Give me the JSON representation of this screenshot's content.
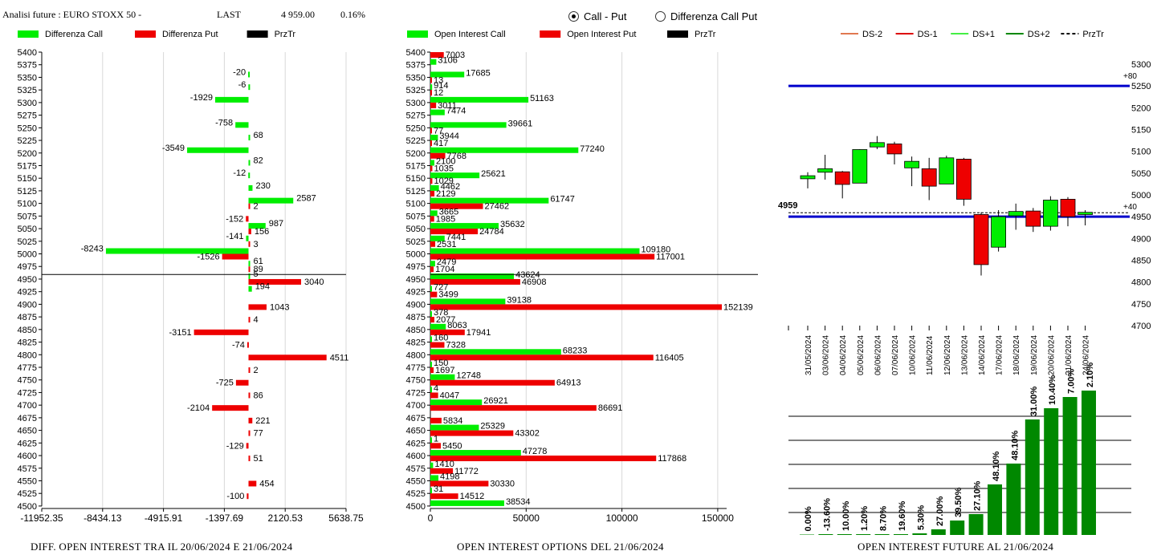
{
  "header": {
    "title": "Analisi future : EURO STOXX 50 -",
    "last_label": "LAST",
    "last_value": "4 959.00",
    "change": "0.16%"
  },
  "mode": {
    "options": [
      "Call - Put",
      "Differenza Call Put"
    ],
    "selected": "Call - Put"
  },
  "colors": {
    "call": "#00ee00",
    "put": "#ee0000",
    "prztr": "#000000",
    "band": "#0000cc",
    "bar_future": "#008800"
  },
  "price_levels": [
    5400,
    5375,
    5350,
    5325,
    5300,
    5275,
    5250,
    5225,
    5200,
    5175,
    5150,
    5125,
    5100,
    5075,
    5050,
    5025,
    5000,
    4975,
    4950,
    4925,
    4900,
    4875,
    4850,
    4825,
    4800,
    4775,
    4750,
    4725,
    4700,
    4675,
    4650,
    4625,
    4600,
    4575,
    4550,
    4525,
    4500
  ],
  "chart_data": [
    {
      "type": "bar",
      "orientation": "horizontal",
      "title": "DIFF. OPEN INTEREST TRA IL 20/06/2024 E 21/06/2024",
      "legend": [
        "Differenza Call",
        "Differenza Put",
        "PrzTr"
      ],
      "x_ticks": [
        "-11952.35",
        "-8434.13",
        "-4915.91",
        "-1397.69",
        "2120.53",
        "5638.75"
      ],
      "xlim": [
        -11952.35,
        5638.75
      ],
      "prztr": 4959,
      "categories": [
        5400,
        5375,
        5350,
        5325,
        5300,
        5275,
        5250,
        5225,
        5200,
        5175,
        5150,
        5125,
        5100,
        5075,
        5050,
        5025,
        5000,
        4975,
        4950,
        4925,
        4900,
        4875,
        4850,
        4825,
        4800,
        4775,
        4750,
        4725,
        4700,
        4675,
        4650,
        4625,
        4600,
        4575,
        4550,
        4525,
        4500
      ],
      "series": [
        {
          "name": "Differenza Call",
          "values": [
            null,
            null,
            -20,
            -6,
            -1929,
            null,
            -758,
            68,
            -3549,
            82,
            -12,
            230,
            2587,
            null,
            987,
            -141,
            -8243,
            61,
            5,
            194,
            null,
            null,
            null,
            null,
            null,
            null,
            null,
            null,
            null,
            null,
            null,
            null,
            null,
            null,
            null,
            null,
            null
          ]
        },
        {
          "name": "Differenza Put",
          "values": [
            null,
            null,
            null,
            null,
            null,
            null,
            null,
            null,
            null,
            null,
            null,
            null,
            2,
            -152,
            156,
            3,
            -1526,
            89,
            3040,
            null,
            1043,
            4,
            -3151,
            -74,
            4511,
            2,
            -725,
            86,
            -2104,
            221,
            77,
            -129,
            51,
            null,
            454,
            -100,
            null
          ]
        }
      ]
    },
    {
      "type": "bar",
      "orientation": "horizontal",
      "title": "OPEN INTEREST OPTIONS DEL 21/06/2024",
      "legend": [
        "Open Interest Call",
        "Open Interest Put",
        "PrzTr"
      ],
      "x_ticks": [
        "0",
        "50000",
        "100000",
        "150000"
      ],
      "xlim": [
        0,
        171000
      ],
      "prztr": 4959,
      "categories": [
        5400,
        5375,
        5350,
        5325,
        5300,
        5275,
        5250,
        5225,
        5200,
        5175,
        5150,
        5125,
        5100,
        5075,
        5050,
        5025,
        5000,
        4975,
        4950,
        4925,
        4900,
        4875,
        4850,
        4825,
        4800,
        4775,
        4750,
        4725,
        4700,
        4675,
        4650,
        4625,
        4600,
        4575,
        4550,
        4525,
        4500
      ],
      "series": [
        {
          "name": "Open Interest Call",
          "values": [
            null,
            3106,
            17685,
            914,
            51163,
            7474,
            39661,
            3944,
            77240,
            2100,
            25621,
            4462,
            61747,
            3665,
            35632,
            7441,
            109180,
            2479,
            43624,
            727,
            39138,
            378,
            8063,
            160,
            68233,
            150,
            12748,
            4,
            26921,
            null,
            25329,
            1,
            47278,
            1410,
            4198,
            31,
            38534
          ]
        },
        {
          "name": "Open Interest Put",
          "values": [
            7003,
            null,
            13,
            12,
            3011,
            null,
            77,
            417,
            7768,
            1035,
            1029,
            2129,
            27462,
            1985,
            24784,
            2531,
            117001,
            1704,
            46908,
            3499,
            152139,
            2077,
            17941,
            7328,
            116405,
            1697,
            64913,
            4047,
            86691,
            5834,
            43302,
            5450,
            117868,
            11772,
            30330,
            14512,
            null
          ]
        }
      ]
    },
    {
      "type": "candlestick",
      "legend": [
        "DS-2",
        "DS-1",
        "DS+1",
        "DS+2",
        "PrzTr"
      ],
      "legend_colors": [
        "#e07850",
        "#dd0000",
        "#44ee44",
        "#008800",
        "#000000"
      ],
      "y_ticks": [
        5300,
        5250,
        5200,
        5150,
        5100,
        5050,
        5000,
        4950,
        4900,
        4850,
        4800,
        4750,
        4700
      ],
      "ylim": [
        4700,
        5300
      ],
      "last": 4959,
      "last_label": "4959",
      "upper_band": 5250,
      "upper_band_label": "+80",
      "lower_band": 4950,
      "lower_band_label": "+40",
      "dates": [
        "31/05/2024",
        "03/06/2024",
        "04/06/2024",
        "05/06/2024",
        "06/06/2024",
        "07/06/2024",
        "10/06/2024",
        "11/06/2024",
        "12/06/2024",
        "13/06/2024",
        "14/06/2024",
        "17/06/2024",
        "18/06/2024",
        "19/06/2024",
        "20/06/2024",
        "21/06/2024",
        "24/06/2024"
      ],
      "candles": [
        {
          "o": 5037,
          "h": 5052,
          "l": 5015,
          "c": 5044
        },
        {
          "o": 5052,
          "h": 5092,
          "l": 5035,
          "c": 5060
        },
        {
          "o": 5053,
          "h": 5055,
          "l": 4992,
          "c": 5024
        },
        {
          "o": 5027,
          "h": 5105,
          "l": 5027,
          "c": 5104
        },
        {
          "o": 5110,
          "h": 5135,
          "l": 5105,
          "c": 5120
        },
        {
          "o": 5117,
          "h": 5122,
          "l": 5070,
          "c": 5094
        },
        {
          "o": 5062,
          "h": 5088,
          "l": 5020,
          "c": 5077
        },
        {
          "o": 5060,
          "h": 5085,
          "l": 4988,
          "c": 5020
        },
        {
          "o": 5025,
          "h": 5090,
          "l": 5025,
          "c": 5085
        },
        {
          "o": 5082,
          "h": 5085,
          "l": 4975,
          "c": 4990
        },
        {
          "o": 4955,
          "h": 4960,
          "l": 4815,
          "c": 4840
        },
        {
          "o": 4880,
          "h": 4965,
          "l": 4870,
          "c": 4950
        },
        {
          "o": 4952,
          "h": 4980,
          "l": 4920,
          "c": 4962
        },
        {
          "o": 4963,
          "h": 4970,
          "l": 4915,
          "c": 4928
        },
        {
          "o": 4928,
          "h": 4997,
          "l": 4918,
          "c": 4988
        },
        {
          "o": 4990,
          "h": 4995,
          "l": 4928,
          "c": 4950
        },
        {
          "o": 4955,
          "h": 4965,
          "l": 4930,
          "c": 4960
        }
      ]
    },
    {
      "type": "bar",
      "title": "OPEN INTEREST FUTURE AL 21/06/2024",
      "labels": [
        "0.00%",
        "-13.60%",
        "10.00%",
        "1.20%",
        "8.70%",
        "19.60%",
        "5.30%",
        "27.00%",
        "39.50%",
        "27.10%",
        "48.10%",
        "48.10%",
        "31.00%",
        "10.40%",
        "7.00%",
        "2.10%"
      ],
      "values": [
        0.5,
        1,
        1,
        1,
        1,
        1,
        2,
        7,
        18,
        26,
        63,
        89,
        144,
        158,
        172,
        180
      ]
    }
  ],
  "footers": {
    "left": "DIFF. OPEN INTEREST TRA IL 20/06/2024 E 21/06/2024",
    "mid": "OPEN INTEREST OPTIONS DEL 21/06/2024",
    "right": "OPEN INTEREST FUTURE AL 21/06/2024"
  }
}
